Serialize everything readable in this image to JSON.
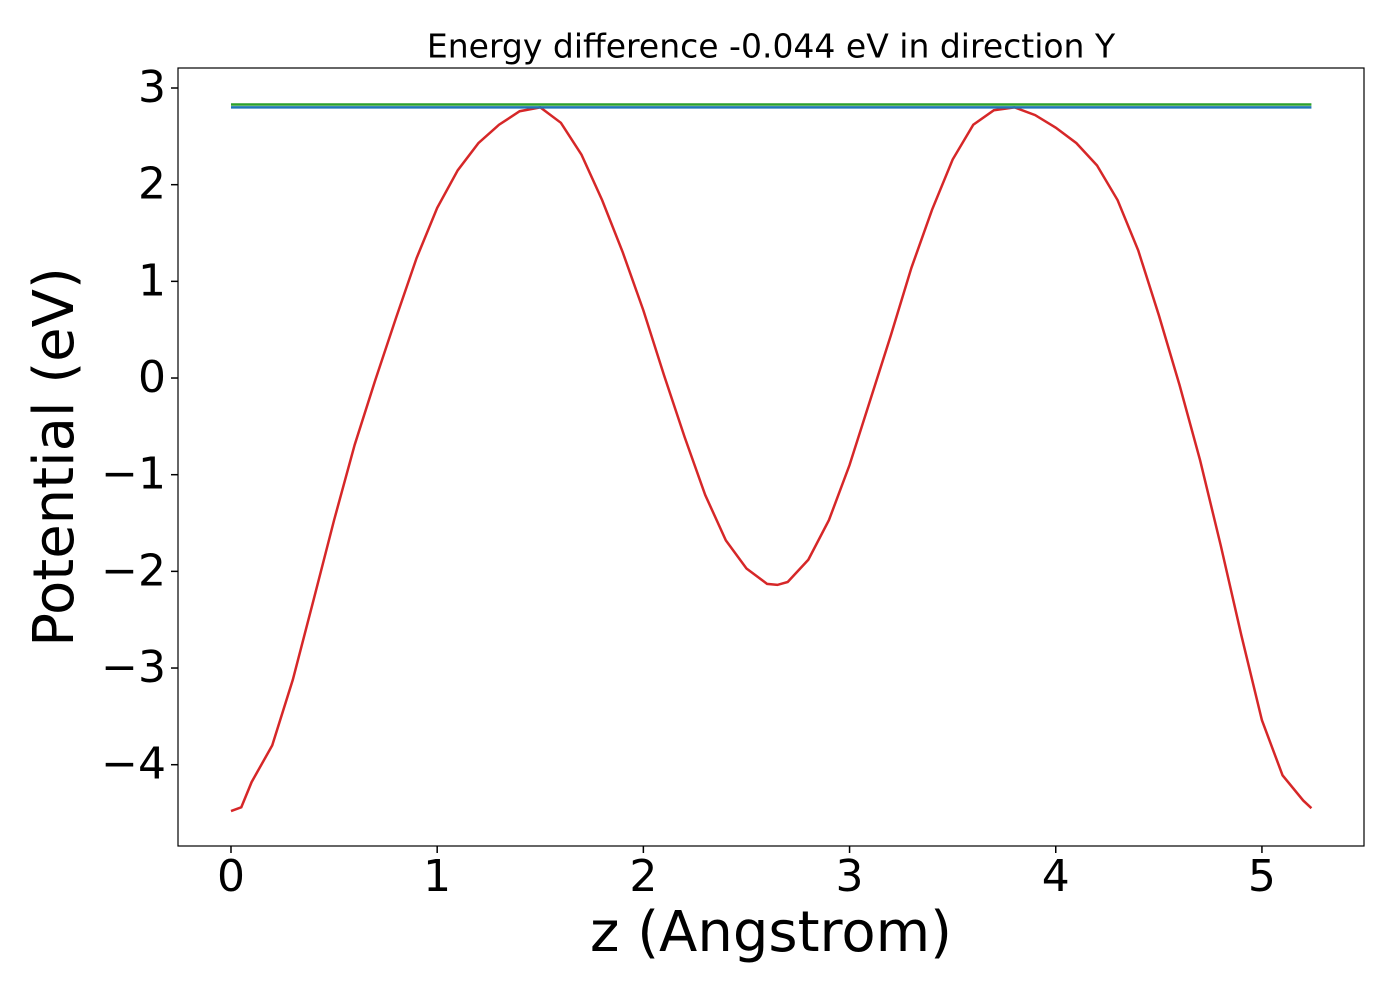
{
  "chart_data": {
    "type": "line",
    "title": "Energy difference -0.044 eV in direction Y",
    "x_label": "z (Angstrom)",
    "y_label": "Potential (eV)",
    "xlim": [
      -0.257,
      5.495
    ],
    "ylim": [
      -4.841,
      3.207
    ],
    "xticks": [
      0,
      1,
      2,
      3,
      4,
      5
    ],
    "yticks": [
      {
        "value": -4,
        "label": "−4"
      },
      {
        "value": -3,
        "label": "−3"
      },
      {
        "value": -2,
        "label": "−2"
      },
      {
        "value": -1,
        "label": "−1"
      },
      0,
      1,
      2,
      3
    ],
    "grid": false,
    "series": [
      {
        "color": "#d62728",
        "x": [
          0,
          0.05,
          0.1,
          0.2,
          0.3,
          0.4,
          0.5,
          0.6,
          0.7,
          0.8,
          0.9,
          1.0,
          1.1,
          1.2,
          1.3,
          1.4,
          1.5,
          1.6,
          1.7,
          1.8,
          1.9,
          2.0,
          2.1,
          2.2,
          2.3,
          2.4,
          2.5,
          2.6,
          2.65,
          2.7,
          2.8,
          2.9,
          3.0,
          3.1,
          3.2,
          3.3,
          3.4,
          3.5,
          3.6,
          3.7,
          3.8,
          3.9,
          4.0,
          4.1,
          4.2,
          4.3,
          4.4,
          4.5,
          4.6,
          4.7,
          4.8,
          4.9,
          5.0,
          5.1,
          5.2,
          5.24
        ],
        "values": [
          -4.48,
          -4.44,
          -4.18,
          -3.8,
          -3.12,
          -2.3,
          -1.47,
          -0.69,
          -0.02,
          0.62,
          1.24,
          1.76,
          2.15,
          2.43,
          2.62,
          2.76,
          2.8,
          2.64,
          2.31,
          1.84,
          1.3,
          0.7,
          0.03,
          -0.61,
          -1.21,
          -1.68,
          -1.97,
          -2.13,
          -2.14,
          -2.11,
          -1.88,
          -1.47,
          -0.9,
          -0.23,
          0.44,
          1.14,
          1.74,
          2.26,
          2.62,
          2.77,
          2.8,
          2.72,
          2.59,
          2.43,
          2.2,
          1.84,
          1.32,
          0.65,
          -0.07,
          -0.85,
          -1.73,
          -2.66,
          -3.54,
          -4.11,
          -4.37,
          -4.45
        ]
      },
      {
        "color": "#2ca02c",
        "x": [
          0,
          5.24
        ],
        "values": [
          2.83,
          2.83
        ]
      },
      {
        "color": "#1f77b4",
        "x": [
          0,
          5.24
        ],
        "values": [
          2.8,
          2.8
        ]
      }
    ]
  }
}
